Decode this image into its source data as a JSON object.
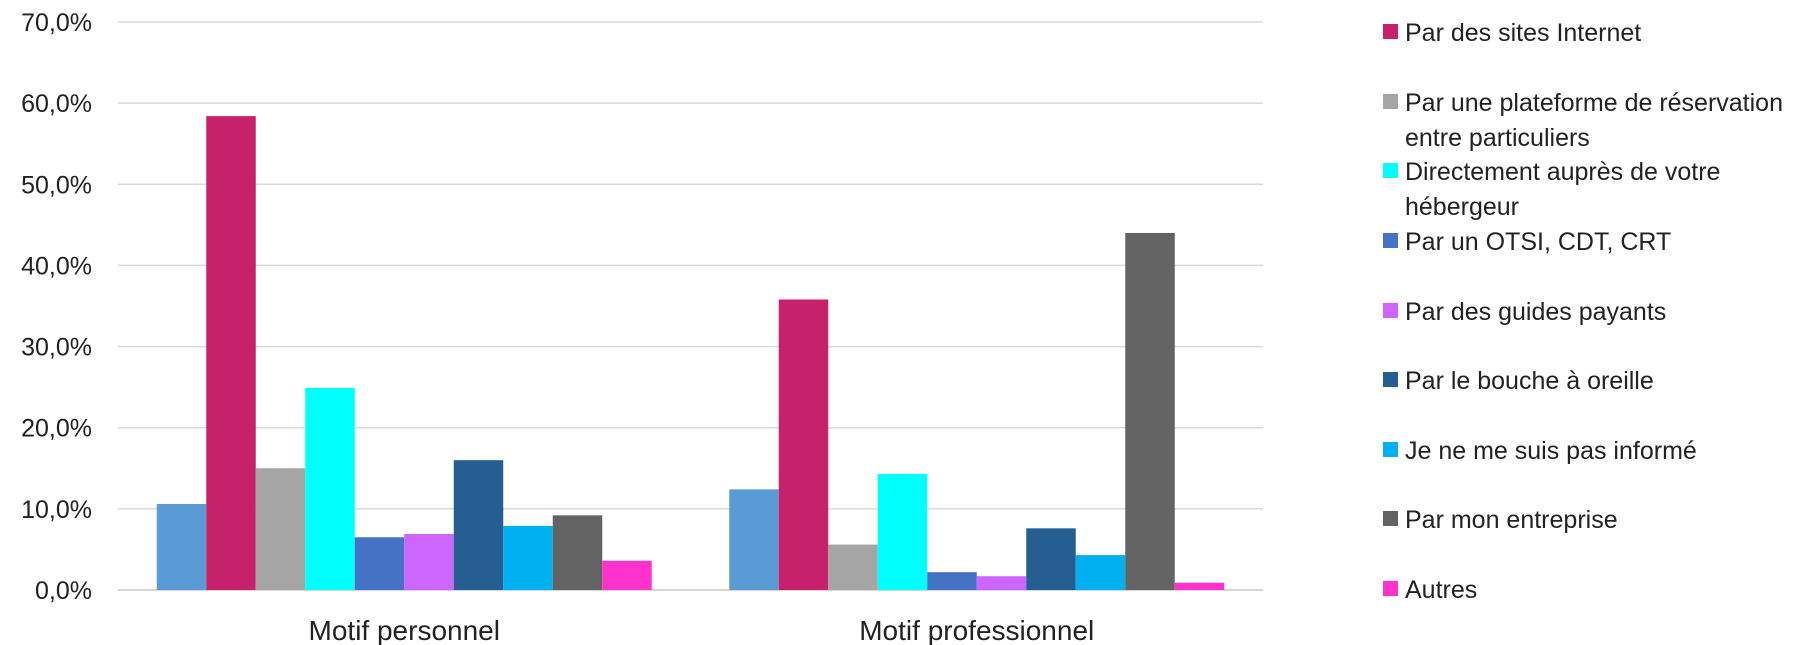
{
  "chart_data": {
    "type": "bar",
    "categories": [
      "Motif personnel",
      "Motif professionnel"
    ],
    "ylim": [
      0,
      70
    ],
    "yticks": [
      "0,0%",
      "10,0%",
      "20,0%",
      "30,0%",
      "40,0%",
      "50,0%",
      "60,0%",
      "70,0%"
    ],
    "grid": true,
    "legend_position": "right",
    "series": [
      {
        "name": "",
        "color": "#5b9bd5",
        "values": [
          10.6,
          12.4
        ]
      },
      {
        "name": "Par des sites Internet",
        "color": "#c8216b",
        "values": [
          58.4,
          35.8
        ]
      },
      {
        "name": "Par une plateforme de réservation entre particuliers",
        "color": "#a5a5a5",
        "values": [
          15.0,
          5.6
        ]
      },
      {
        "name": "Directement auprès de votre hébergeur",
        "color": "#00ffff",
        "values": [
          24.9,
          14.3
        ]
      },
      {
        "name": "Par un OTSI, CDT, CRT",
        "color": "#4472c4",
        "values": [
          6.5,
          2.2
        ]
      },
      {
        "name": "Par des guides payants",
        "color": "#cc66ff",
        "values": [
          6.9,
          1.7
        ]
      },
      {
        "name": "Par le bouche à oreille",
        "color": "#255e91",
        "values": [
          16.0,
          7.6
        ]
      },
      {
        "name": "Je ne me suis pas informé",
        "color": "#00b0f0",
        "values": [
          7.9,
          4.3
        ]
      },
      {
        "name": "Par mon entreprise",
        "color": "#636363",
        "values": [
          9.2,
          44.0
        ]
      },
      {
        "name": "Autres",
        "color": "#ff33cc",
        "values": [
          3.6,
          0.9
        ]
      }
    ]
  }
}
